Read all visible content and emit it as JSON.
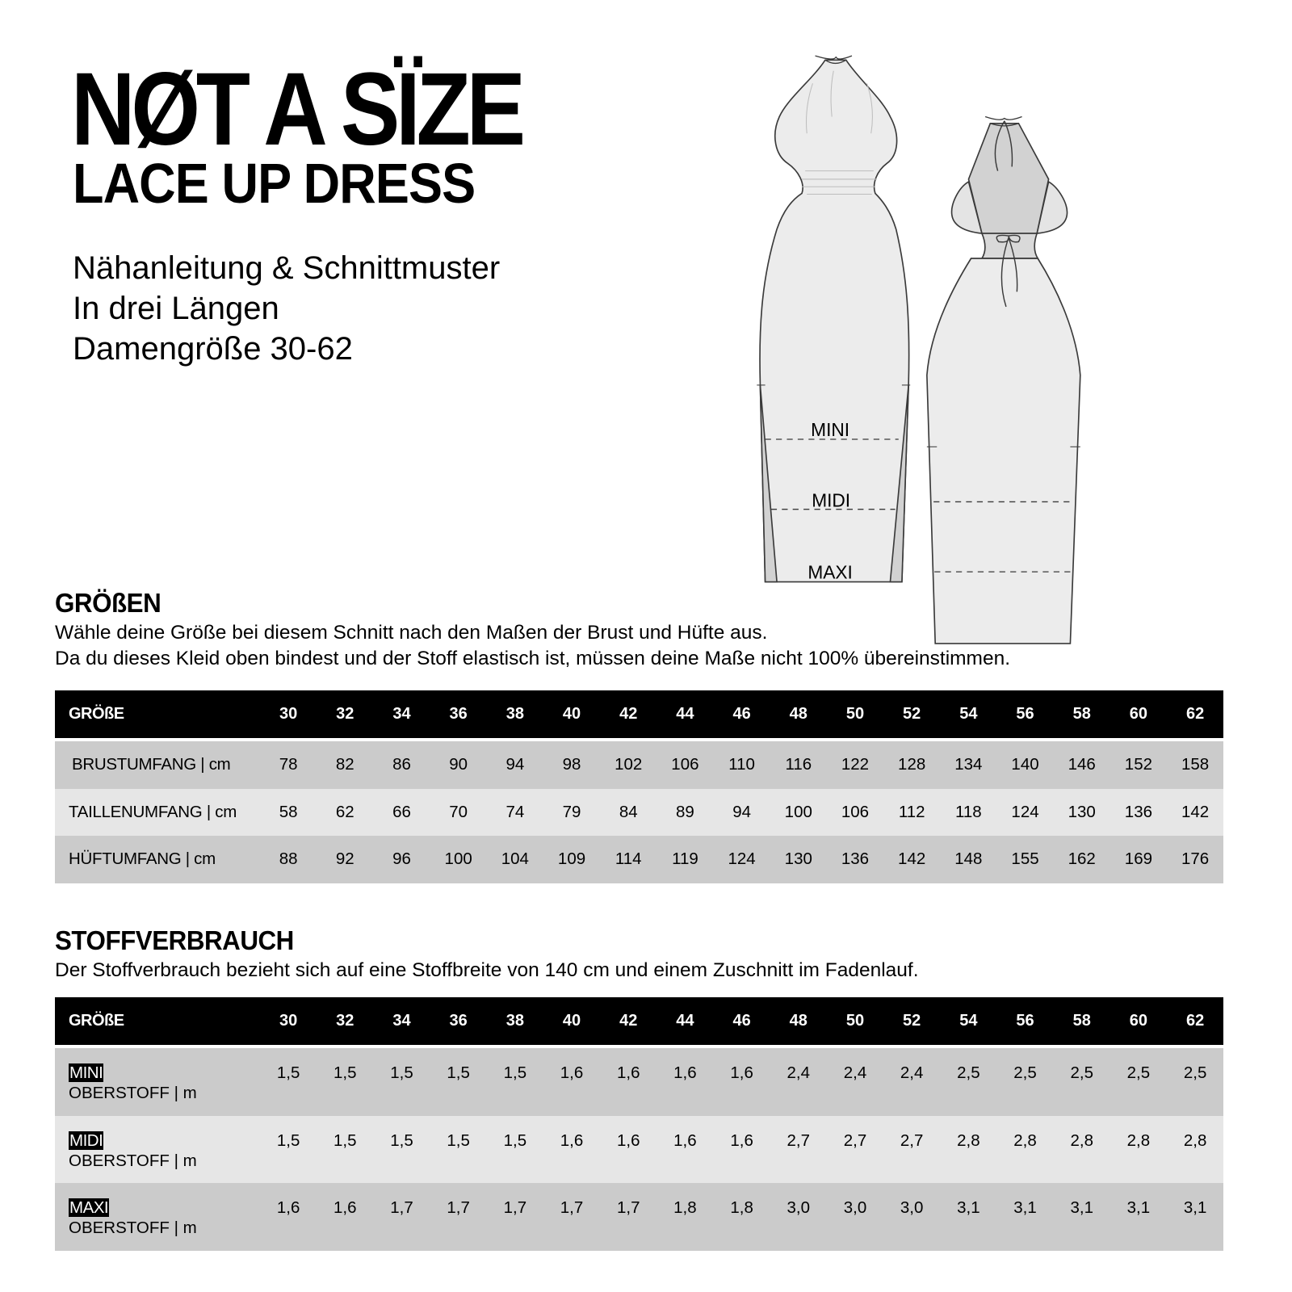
{
  "header": {
    "brand": "NØT A SÏZE",
    "product": "LACE UP DRESS",
    "subtitle_lines": [
      "Nähanleitung & Schnittmuster",
      "In drei Längen",
      "Damengröße 30-62"
    ]
  },
  "illustration": {
    "length_labels": [
      "MINI",
      "MIDI",
      "MAXI"
    ],
    "colors": {
      "fabric": "#ececec",
      "lining": "#d2d2d2",
      "outline": "#3a3a3a"
    }
  },
  "sizes_section": {
    "title": "GRÖßEN",
    "text_lines": [
      "Wähle deine Größe bei diesem Schnitt nach den Maßen der Brust und Hüfte aus.",
      "Da du dieses Kleid oben bindest und der Stoff elastisch ist, müssen deine Maße nicht 100% übereinstimmen."
    ],
    "table": {
      "header_label": "GRÖßE",
      "sizes": [
        "30",
        "32",
        "34",
        "36",
        "38",
        "40",
        "42",
        "44",
        "46",
        "48",
        "50",
        "52",
        "54",
        "56",
        "58",
        "60",
        "62"
      ],
      "rows": [
        {
          "label": "BRUSTUMFANG | cm",
          "values": [
            "78",
            "82",
            "86",
            "90",
            "94",
            "98",
            "102",
            "106",
            "110",
            "116",
            "122",
            "128",
            "134",
            "140",
            "146",
            "152",
            "158"
          ]
        },
        {
          "label": "TAILLENUMFANG | cm",
          "values": [
            "58",
            "62",
            "66",
            "70",
            "74",
            "79",
            "84",
            "89",
            "94",
            "100",
            "106",
            "112",
            "118",
            "124",
            "130",
            "136",
            "142"
          ]
        },
        {
          "label": "HÜFTUMFANG | cm",
          "values": [
            "88",
            "92",
            "96",
            "100",
            "104",
            "109",
            "114",
            "119",
            "124",
            "130",
            "136",
            "142",
            "148",
            "155",
            "162",
            "169",
            "176"
          ]
        }
      ]
    }
  },
  "fabric_section": {
    "title": "STOFFVERBRAUCH",
    "text": "Der Stoffverbrauch bezieht sich auf eine Stoffbreite von 140 cm und einem Zuschnitt im Fadenlauf.",
    "table": {
      "header_label": "GRÖßE",
      "sizes": [
        "30",
        "32",
        "34",
        "36",
        "38",
        "40",
        "42",
        "44",
        "46",
        "48",
        "50",
        "52",
        "54",
        "56",
        "58",
        "60",
        "62"
      ],
      "rows": [
        {
          "tag": "MINI",
          "label": "OBERSTOFF | m",
          "values": [
            "1,5",
            "1,5",
            "1,5",
            "1,5",
            "1,5",
            "1,6",
            "1,6",
            "1,6",
            "1,6",
            "2,4",
            "2,4",
            "2,4",
            "2,5",
            "2,5",
            "2,5",
            "2,5",
            "2,5"
          ]
        },
        {
          "tag": "MIDI",
          "label": "OBERSTOFF | m",
          "values": [
            "1,5",
            "1,5",
            "1,5",
            "1,5",
            "1,5",
            "1,6",
            "1,6",
            "1,6",
            "1,6",
            "2,7",
            "2,7",
            "2,7",
            "2,8",
            "2,8",
            "2,8",
            "2,8",
            "2,8"
          ]
        },
        {
          "tag": "MAXI",
          "label": "OBERSTOFF | m",
          "values": [
            "1,6",
            "1,6",
            "1,7",
            "1,7",
            "1,7",
            "1,7",
            "1,7",
            "1,8",
            "1,8",
            "3,0",
            "3,0",
            "3,0",
            "3,1",
            "3,1",
            "3,1",
            "3,1",
            "3,1"
          ]
        }
      ]
    }
  },
  "colors": {
    "header_bg": "#000000",
    "row_dark": "#cbcbcb",
    "row_light": "#e6e6e6"
  }
}
